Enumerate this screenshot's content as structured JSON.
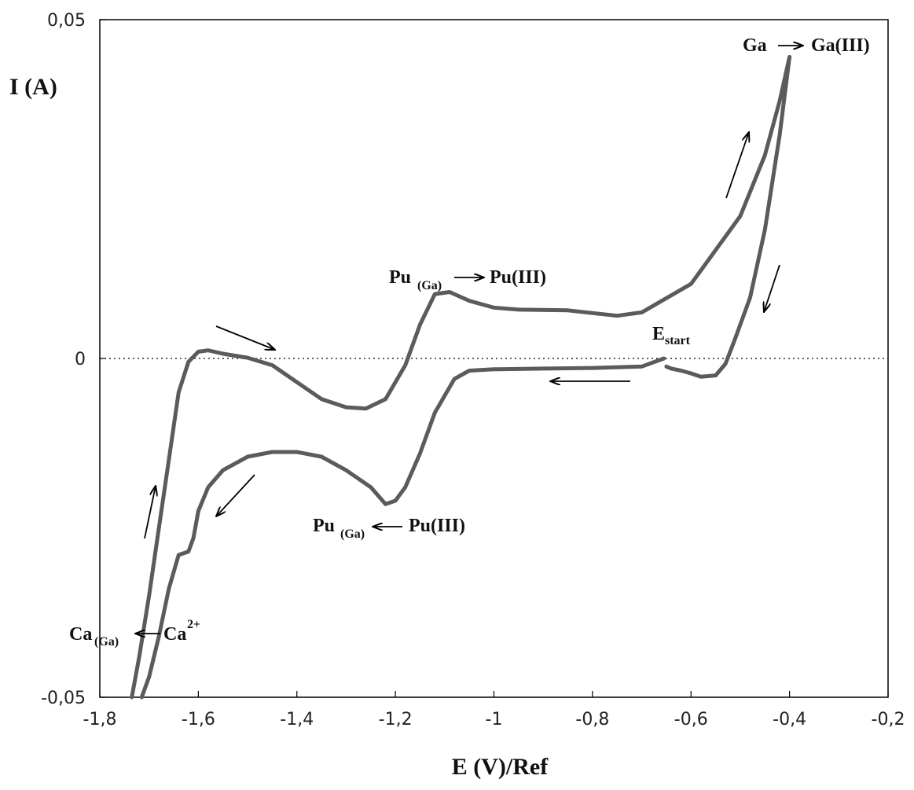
{
  "chart_data": {
    "type": "line",
    "title": "",
    "xlabel": "E (V)/Ref",
    "ylabel": "I (A)",
    "xlim": [
      -1.8,
      -0.2
    ],
    "ylim": [
      -0.05,
      0.05
    ],
    "x_ticks": [
      -1.8,
      -1.6,
      -1.4,
      -1.2,
      -1.0,
      -0.8,
      -0.6,
      -0.4,
      -0.2
    ],
    "x_tick_labels": [
      "-1,8",
      "-1,6",
      "-1,4",
      "-1,2",
      "-1",
      "-0,8",
      "-0,6",
      "-0,4",
      "-0,2"
    ],
    "y_ticks": [
      -0.05,
      0,
      0.05
    ],
    "y_tick_labels": [
      "-0,05",
      "0",
      "0,05"
    ],
    "zero_line": true,
    "color": "#5b5b5b",
    "series": [
      {
        "points": [
          [
            -0.655,
            0.0
          ],
          [
            -0.7,
            -0.0012
          ],
          [
            -0.8,
            -0.0014
          ],
          [
            -0.9,
            -0.0015
          ],
          [
            -1.0,
            -0.0016
          ],
          [
            -1.05,
            -0.0018
          ],
          [
            -1.08,
            -0.003
          ],
          [
            -1.12,
            -0.008
          ],
          [
            -1.15,
            -0.014
          ],
          [
            -1.18,
            -0.019
          ],
          [
            -1.2,
            -0.021
          ],
          [
            -1.22,
            -0.0215
          ],
          [
            -1.25,
            -0.019
          ],
          [
            -1.3,
            -0.0165
          ],
          [
            -1.35,
            -0.0145
          ],
          [
            -1.4,
            -0.0138
          ],
          [
            -1.45,
            -0.0138
          ],
          [
            -1.5,
            -0.0145
          ],
          [
            -1.55,
            -0.0165
          ],
          [
            -1.58,
            -0.019
          ],
          [
            -1.6,
            -0.0225
          ],
          [
            -1.61,
            -0.0265
          ],
          [
            -1.62,
            -0.0285
          ],
          [
            -1.64,
            -0.029
          ],
          [
            -1.66,
            -0.034
          ],
          [
            -1.68,
            -0.041
          ],
          [
            -1.7,
            -0.047
          ],
          [
            -1.715,
            -0.05
          ]
        ]
      },
      {
        "points": [
          [
            -1.735,
            -0.05
          ],
          [
            -1.72,
            -0.044
          ],
          [
            -1.7,
            -0.035
          ],
          [
            -1.68,
            -0.025
          ],
          [
            -1.66,
            -0.015
          ],
          [
            -1.64,
            -0.005
          ],
          [
            -1.62,
            -0.0005
          ],
          [
            -1.6,
            0.001
          ],
          [
            -1.58,
            0.0012
          ],
          [
            -1.55,
            0.0007
          ],
          [
            -1.5,
            0.0001
          ],
          [
            -1.45,
            -0.001
          ],
          [
            -1.4,
            -0.0035
          ],
          [
            -1.35,
            -0.006
          ],
          [
            -1.3,
            -0.0072
          ],
          [
            -1.26,
            -0.0074
          ],
          [
            -1.22,
            -0.006
          ],
          [
            -1.18,
            -0.001
          ],
          [
            -1.15,
            0.005
          ],
          [
            -1.12,
            0.0095
          ],
          [
            -1.09,
            0.0098
          ],
          [
            -1.05,
            0.0085
          ],
          [
            -1.0,
            0.0075
          ],
          [
            -0.95,
            0.0072
          ],
          [
            -0.85,
            0.0071
          ],
          [
            -0.75,
            0.0063
          ],
          [
            -0.7,
            0.0068
          ],
          [
            -0.6,
            0.011
          ],
          [
            -0.5,
            0.021
          ],
          [
            -0.45,
            0.03
          ],
          [
            -0.42,
            0.038
          ],
          [
            -0.4,
            0.0445
          ],
          [
            -0.42,
            0.033
          ],
          [
            -0.45,
            0.019
          ],
          [
            -0.48,
            0.009
          ],
          [
            -0.51,
            0.003
          ],
          [
            -0.53,
            -0.0008
          ],
          [
            -0.55,
            -0.0025
          ],
          [
            -0.58,
            -0.0027
          ],
          [
            -0.6,
            -0.0022
          ],
          [
            -0.62,
            -0.0018
          ],
          [
            -0.64,
            -0.0015
          ],
          [
            -0.65,
            -0.0012
          ]
        ]
      }
    ],
    "annotations": {
      "ga": "Ga",
      "ga_iii": "Ga(III)",
      "pu_ox_main": "Pu",
      "pu_ox_sub": "(Ga)",
      "pu_ox_product": "Pu(III)",
      "pu_red_main": "Pu",
      "pu_red_sub": "(Ga)",
      "pu_red_source": "Pu(III)",
      "estart_main": "E",
      "estart_sub": "start",
      "ca_main": "Ca",
      "ca_sub": "(Ga)",
      "ca_ion": "Ca",
      "ca_ion_sup": "2+"
    }
  }
}
